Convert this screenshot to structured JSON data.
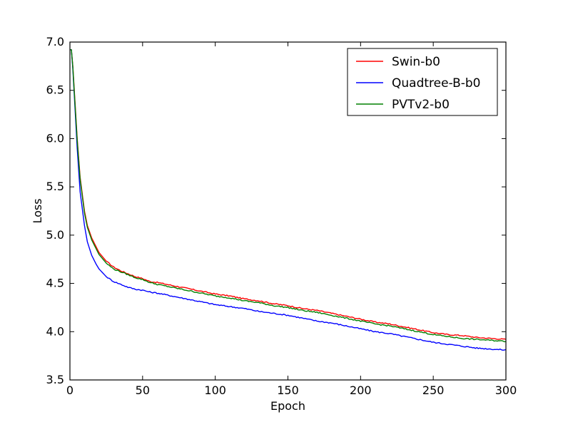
{
  "chart_data": {
    "type": "line",
    "title": "",
    "xlabel": "Epoch",
    "ylabel": "Loss",
    "xlim": [
      0,
      300
    ],
    "ylim": [
      3.5,
      7.0
    ],
    "xticks": [
      "0",
      "50",
      "100",
      "150",
      "200",
      "250",
      "300"
    ],
    "yticks": [
      "3.5",
      "4.0",
      "4.5",
      "5.0",
      "5.5",
      "6.0",
      "6.5",
      "7.0"
    ],
    "grid": false,
    "legend_position": "top-right",
    "x": [
      0,
      1,
      2,
      3,
      5,
      7,
      10,
      12,
      15,
      18,
      20,
      25,
      30,
      35,
      40,
      45,
      50,
      55,
      60,
      70,
      80,
      90,
      100,
      110,
      120,
      130,
      140,
      150,
      160,
      170,
      180,
      190,
      200,
      210,
      220,
      230,
      240,
      250,
      260,
      270,
      280,
      290,
      300
    ],
    "series": [
      {
        "name": "Swin-b0",
        "color": "#ff0000",
        "values": [
          6.92,
          6.92,
          6.75,
          6.5,
          6.0,
          5.6,
          5.25,
          5.1,
          4.97,
          4.88,
          4.82,
          4.73,
          4.67,
          4.63,
          4.6,
          4.57,
          4.55,
          4.52,
          4.51,
          4.48,
          4.45,
          4.42,
          4.39,
          4.37,
          4.34,
          4.32,
          4.29,
          4.27,
          4.24,
          4.22,
          4.19,
          4.16,
          4.13,
          4.1,
          4.08,
          4.05,
          4.02,
          3.99,
          3.97,
          3.96,
          3.94,
          3.93,
          3.92
        ]
      },
      {
        "name": "Quadtree-B-b0",
        "color": "#0000ff",
        "values": [
          6.92,
          6.92,
          6.72,
          6.45,
          5.9,
          5.45,
          5.1,
          4.93,
          4.79,
          4.7,
          4.65,
          4.57,
          4.52,
          4.49,
          4.46,
          4.44,
          4.43,
          4.41,
          4.4,
          4.37,
          4.34,
          4.31,
          4.28,
          4.26,
          4.24,
          4.21,
          4.19,
          4.17,
          4.14,
          4.11,
          4.09,
          4.06,
          4.03,
          4.0,
          3.98,
          3.95,
          3.92,
          3.89,
          3.87,
          3.85,
          3.83,
          3.82,
          3.81
        ]
      },
      {
        "name": "PVTv2-b0",
        "color": "#008000",
        "values": [
          6.92,
          6.92,
          6.74,
          6.48,
          5.98,
          5.58,
          5.23,
          5.08,
          4.95,
          4.86,
          4.8,
          4.71,
          4.65,
          4.62,
          4.59,
          4.56,
          4.54,
          4.51,
          4.49,
          4.46,
          4.43,
          4.4,
          4.37,
          4.35,
          4.32,
          4.3,
          4.27,
          4.25,
          4.22,
          4.2,
          4.17,
          4.14,
          4.11,
          4.08,
          4.06,
          4.03,
          4.0,
          3.97,
          3.95,
          3.93,
          3.92,
          3.91,
          3.9
        ]
      }
    ]
  }
}
